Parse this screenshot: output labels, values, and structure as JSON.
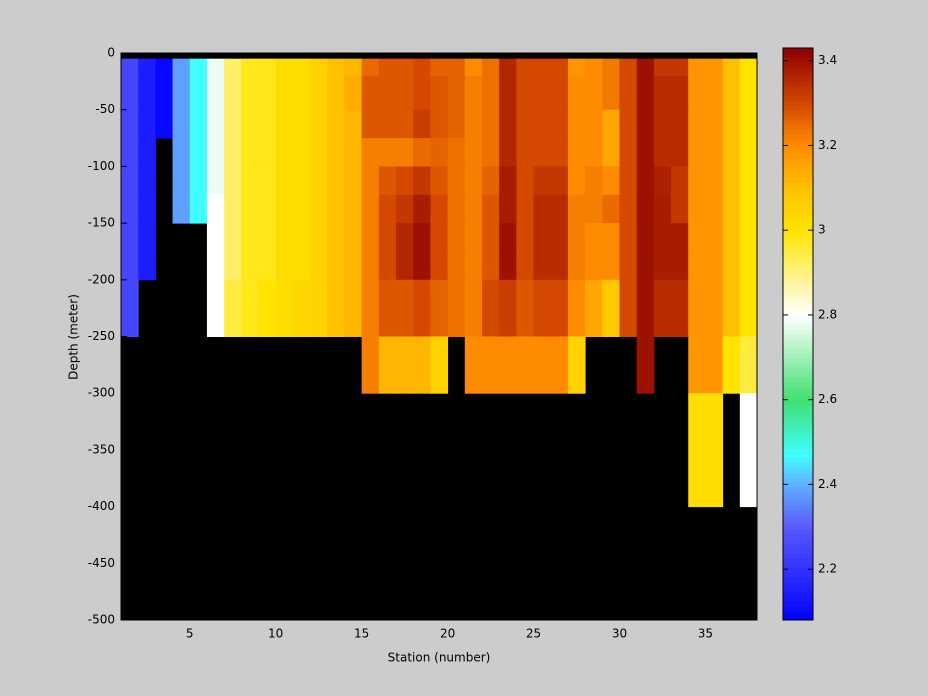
{
  "chart_data": {
    "type": "heatmap",
    "xlabel": "Station (number)",
    "ylabel": "Depth (meter)",
    "x": [
      1,
      2,
      3,
      4,
      5,
      6,
      7,
      8,
      9,
      10,
      11,
      12,
      13,
      14,
      15,
      16,
      17,
      18,
      19,
      20,
      21,
      22,
      23,
      24,
      25,
      26,
      27,
      28,
      29,
      30,
      31,
      32,
      33,
      34,
      35,
      36,
      37,
      38
    ],
    "y": [
      0,
      -5,
      -20,
      -50,
      -75,
      -100,
      -125,
      -150,
      -175,
      -200,
      -250,
      -300,
      -400,
      -500
    ],
    "z": [
      [
        null,
        null,
        null,
        null,
        null,
        null,
        null,
        null,
        null,
        null,
        null,
        null,
        null,
        null,
        null,
        null,
        null,
        null,
        null,
        null,
        null,
        null,
        null,
        null,
        null,
        null,
        null,
        null,
        null,
        null,
        null,
        null,
        null,
        null,
        null,
        null,
        null
      ],
      [
        2.25,
        2.15,
        2.1,
        2.38,
        2.47,
        2.78,
        2.92,
        2.98,
        2.98,
        3.02,
        3.02,
        3.05,
        3.1,
        3.12,
        3.25,
        3.28,
        3.28,
        3.3,
        3.26,
        3.26,
        3.2,
        3.24,
        3.36,
        3.3,
        3.3,
        3.3,
        3.18,
        3.2,
        3.23,
        3.3,
        3.4,
        3.33,
        3.33,
        3.18,
        3.18,
        3.1,
        3.0
      ],
      [
        2.25,
        2.15,
        2.1,
        2.38,
        2.47,
        2.78,
        2.92,
        2.98,
        2.98,
        3.02,
        3.02,
        3.05,
        3.1,
        3.14,
        3.28,
        3.28,
        3.28,
        3.3,
        3.28,
        3.26,
        3.22,
        3.24,
        3.36,
        3.3,
        3.3,
        3.3,
        3.2,
        3.2,
        3.23,
        3.3,
        3.4,
        3.35,
        3.35,
        3.18,
        3.18,
        3.1,
        3.0
      ],
      [
        2.25,
        2.15,
        2.1,
        2.38,
        2.47,
        2.78,
        2.92,
        2.98,
        2.98,
        3.02,
        3.02,
        3.05,
        3.1,
        3.12,
        3.28,
        3.28,
        3.28,
        3.32,
        3.28,
        3.26,
        3.22,
        3.24,
        3.36,
        3.3,
        3.3,
        3.3,
        3.2,
        3.2,
        3.15,
        3.3,
        3.4,
        3.35,
        3.35,
        3.18,
        3.18,
        3.1,
        3.0
      ],
      [
        2.25,
        2.15,
        null,
        2.38,
        2.47,
        2.78,
        2.92,
        2.98,
        2.98,
        3.02,
        3.02,
        3.05,
        3.1,
        3.12,
        3.22,
        3.22,
        3.22,
        3.25,
        3.26,
        3.24,
        3.22,
        3.24,
        3.36,
        3.3,
        3.3,
        3.3,
        3.2,
        3.2,
        3.15,
        3.3,
        3.4,
        3.35,
        3.35,
        3.18,
        3.18,
        3.1,
        3.0
      ],
      [
        2.25,
        2.15,
        null,
        2.38,
        2.47,
        2.78,
        2.92,
        2.98,
        2.98,
        3.02,
        3.02,
        3.05,
        3.1,
        3.12,
        3.22,
        3.28,
        3.3,
        3.33,
        3.28,
        3.24,
        3.22,
        3.26,
        3.38,
        3.3,
        3.33,
        3.33,
        3.2,
        3.22,
        3.2,
        3.3,
        3.4,
        3.37,
        3.33,
        3.18,
        3.18,
        3.1,
        3.0
      ],
      [
        2.25,
        2.15,
        null,
        2.38,
        2.47,
        2.8,
        2.92,
        2.98,
        2.98,
        3.02,
        3.02,
        3.05,
        3.1,
        3.12,
        3.22,
        3.3,
        3.33,
        3.38,
        3.3,
        3.24,
        3.22,
        3.28,
        3.38,
        3.3,
        3.35,
        3.35,
        3.22,
        3.22,
        3.25,
        3.3,
        3.4,
        3.38,
        3.33,
        3.18,
        3.18,
        3.1,
        3.0
      ],
      [
        2.25,
        2.15,
        null,
        null,
        null,
        2.8,
        2.92,
        2.98,
        2.98,
        3.02,
        3.02,
        3.05,
        3.1,
        3.12,
        3.22,
        3.3,
        3.36,
        3.4,
        3.3,
        3.24,
        3.22,
        3.28,
        3.4,
        3.3,
        3.35,
        3.35,
        3.22,
        3.2,
        3.2,
        3.3,
        3.4,
        3.38,
        3.38,
        3.18,
        3.18,
        3.1,
        3.0
      ],
      [
        2.25,
        2.15,
        null,
        null,
        null,
        2.8,
        2.92,
        2.98,
        2.98,
        3.02,
        3.02,
        3.05,
        3.1,
        3.12,
        3.22,
        3.3,
        3.36,
        3.4,
        3.3,
        3.24,
        3.22,
        3.28,
        3.4,
        3.3,
        3.35,
        3.35,
        3.22,
        3.2,
        3.2,
        3.3,
        3.4,
        3.38,
        3.38,
        3.18,
        3.18,
        3.1,
        3.0
      ],
      [
        2.25,
        null,
        null,
        null,
        null,
        2.8,
        2.95,
        2.98,
        3.0,
        3.02,
        3.04,
        3.05,
        3.1,
        3.12,
        3.22,
        3.28,
        3.28,
        3.3,
        3.26,
        3.24,
        3.22,
        3.3,
        3.32,
        3.28,
        3.3,
        3.3,
        3.2,
        3.15,
        3.08,
        3.3,
        3.4,
        3.35,
        3.35,
        3.18,
        3.18,
        3.1,
        3.0
      ],
      [
        null,
        null,
        null,
        null,
        null,
        null,
        null,
        null,
        null,
        null,
        null,
        null,
        null,
        null,
        3.22,
        3.12,
        3.12,
        3.12,
        3.05,
        null,
        3.2,
        3.2,
        3.2,
        3.2,
        3.2,
        3.2,
        3.05,
        null,
        null,
        null,
        3.4,
        null,
        null,
        3.18,
        3.18,
        3.0,
        2.95
      ],
      [
        null,
        null,
        null,
        null,
        null,
        null,
        null,
        null,
        null,
        null,
        null,
        null,
        null,
        null,
        null,
        null,
        null,
        null,
        null,
        null,
        null,
        null,
        null,
        null,
        null,
        null,
        null,
        null,
        null,
        null,
        null,
        null,
        null,
        3.02,
        3.02,
        null,
        2.8
      ],
      [
        null,
        null,
        null,
        null,
        null,
        null,
        null,
        null,
        null,
        null,
        null,
        null,
        null,
        null,
        null,
        null,
        null,
        null,
        null,
        null,
        null,
        null,
        null,
        null,
        null,
        null,
        null,
        null,
        null,
        null,
        null,
        null,
        null,
        null,
        null,
        null,
        null
      ]
    ],
    "xlim": [
      1,
      38
    ],
    "ylim": [
      -500,
      0
    ],
    "xticks": [
      5,
      10,
      15,
      20,
      25,
      30,
      35
    ],
    "yticks": [
      0,
      -50,
      -100,
      -150,
      -200,
      -250,
      -300,
      -350,
      -400,
      -450,
      -500
    ],
    "clim": [
      2.08,
      3.43
    ],
    "cticks": [
      2.2,
      2.4,
      2.6,
      2.8,
      3,
      3.2,
      3.4
    ],
    "missing_color": "#000000",
    "colormap": [
      [
        2.08,
        "#0000ff"
      ],
      [
        2.3,
        "#5a5aff"
      ],
      [
        2.4,
        "#60b0ff"
      ],
      [
        2.47,
        "#40ffff"
      ],
      [
        2.6,
        "#40e070"
      ],
      [
        2.8,
        "#ffffff"
      ],
      [
        3.0,
        "#ffe400"
      ],
      [
        3.1,
        "#ffc000"
      ],
      [
        3.2,
        "#ff8c00"
      ],
      [
        3.3,
        "#d44800"
      ],
      [
        3.43,
        "#8c0000"
      ]
    ]
  }
}
